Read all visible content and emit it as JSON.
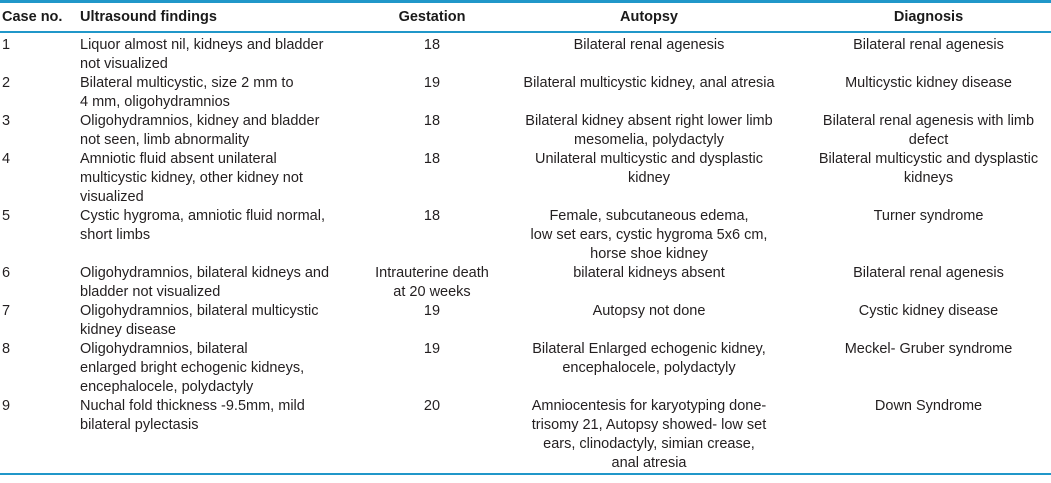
{
  "table": {
    "columns": [
      {
        "key": "case_no",
        "label": "Case no."
      },
      {
        "key": "ultrasound",
        "label": "Ultrasound findings"
      },
      {
        "key": "gestation",
        "label": "Gestation"
      },
      {
        "key": "autopsy",
        "label": "Autopsy"
      },
      {
        "key": "diagnosis",
        "label": "Diagnosis"
      }
    ],
    "rows": [
      {
        "case_no": "1",
        "ultrasound": "Liquor almost nil, kidneys and bladder\nnot visualized",
        "gestation": "18",
        "autopsy": "Bilateral renal agenesis",
        "diagnosis": "Bilateral renal agenesis"
      },
      {
        "case_no": "2",
        "ultrasound": "Bilateral multicystic, size 2 mm to\n4 mm, oligohydramnios",
        "gestation": "19",
        "autopsy": "Bilateral multicystic kidney, anal atresia",
        "diagnosis": "Multicystic kidney disease"
      },
      {
        "case_no": "3",
        "ultrasound": "Oligohydramnios, kidney and bladder\nnot seen, limb abnormality",
        "gestation": "18",
        "autopsy": "Bilateral kidney absent right lower limb\nmesomelia, polydactyly",
        "diagnosis": "Bilateral renal agenesis with limb\ndefect"
      },
      {
        "case_no": "4",
        "ultrasound": "Amniotic fluid absent unilateral\nmulticystic kidney, other kidney not\nvisualized",
        "gestation": "18",
        "autopsy": "Unilateral multicystic and dysplastic\nkidney",
        "diagnosis": "Bilateral multicystic and dysplastic\nkidneys"
      },
      {
        "case_no": "5",
        "ultrasound": "Cystic hygroma, amniotic fluid normal,\nshort limbs",
        "gestation": "18",
        "autopsy": "Female, subcutaneous edema,\nlow set ears, cystic hygroma 5x6 cm,\nhorse shoe kidney",
        "diagnosis": "Turner syndrome"
      },
      {
        "case_no": "6",
        "ultrasound": "Oligohydramnios, bilateral kidneys and\nbladder not visualized",
        "gestation": "Intrauterine death\nat 20 weeks",
        "autopsy": "bilateral kidneys absent",
        "diagnosis": "Bilateral renal agenesis"
      },
      {
        "case_no": "7",
        "ultrasound": "Oligohydramnios, bilateral multicystic\nkidney disease",
        "gestation": "19",
        "autopsy": "Autopsy not done",
        "diagnosis": "Cystic kidney disease"
      },
      {
        "case_no": "8",
        "ultrasound": "Oligohydramnios, bilateral\nenlarged bright echogenic kidneys,\nencephalocele, polydactyly",
        "gestation": "19",
        "autopsy": "Bilateral Enlarged echogenic kidney,\nencephalocele, polydactyly",
        "diagnosis": "Meckel- Gruber syndrome"
      },
      {
        "case_no": "9",
        "ultrasound": "Nuchal fold thickness -9.5mm, mild\nbilateral pylectasis",
        "gestation": "20",
        "autopsy": "Amniocentesis for karyotyping done-\ntrisomy 21, Autopsy showed- low set\nears, clinodactyly, simian crease,\nanal atresia",
        "diagnosis": "Down Syndrome"
      }
    ]
  },
  "colors": {
    "rule": "#2097c9",
    "text": "#231f20"
  }
}
